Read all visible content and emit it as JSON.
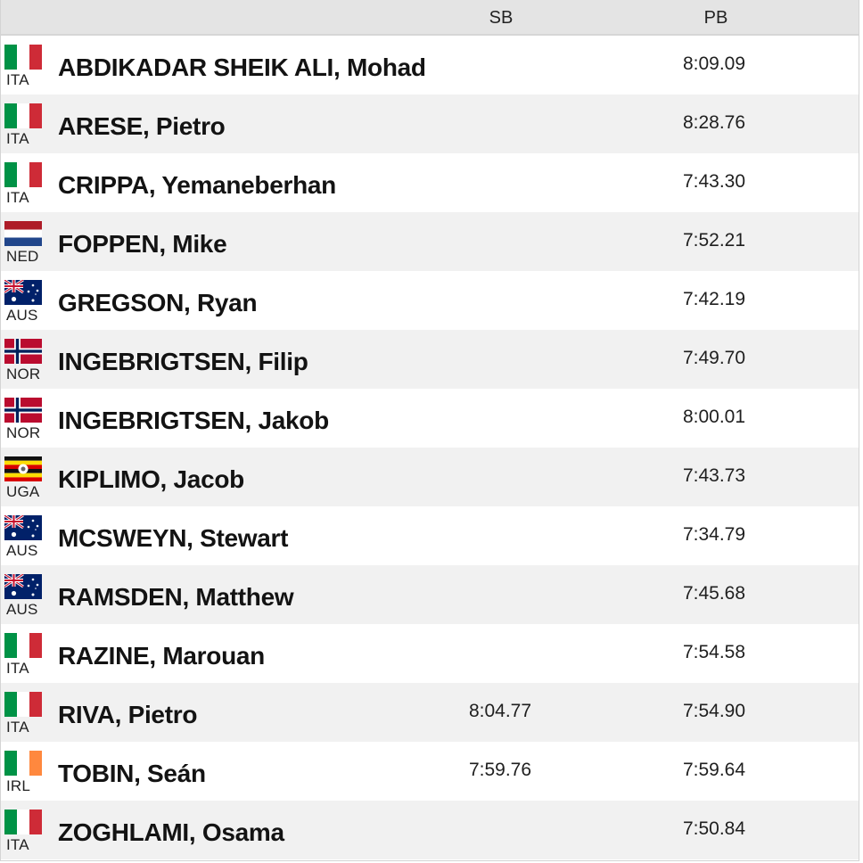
{
  "header": {
    "sb_label": "SB",
    "pb_label": "PB"
  },
  "colors": {
    "header_bg": "#e4e4e4",
    "row_alt_bg": "#f1f1f1",
    "ita_green": "#009246",
    "ita_red": "#ce2b37",
    "ned_red": "#ae1c28",
    "ned_blue": "#21468b",
    "aus_blue": "#012169",
    "nor_red": "#ba0c2f",
    "nor_blue": "#00205b",
    "irl_orange": "#ff883e",
    "uga_yellow": "#fcdc04"
  },
  "rows": [
    {
      "flag": "ita-flag-icon",
      "country": "ITA",
      "name": "ABDIKADAR SHEIK ALI, Mohad",
      "sb": "",
      "pb": "8:09.09"
    },
    {
      "flag": "ita-flag-icon",
      "country": "ITA",
      "name": "ARESE, Pietro",
      "sb": "",
      "pb": "8:28.76"
    },
    {
      "flag": "ita-flag-icon",
      "country": "ITA",
      "name": "CRIPPA, Yemaneberhan",
      "sb": "",
      "pb": "7:43.30"
    },
    {
      "flag": "ned-flag-icon",
      "country": "NED",
      "name": "FOPPEN, Mike",
      "sb": "",
      "pb": "7:52.21"
    },
    {
      "flag": "aus-flag-icon",
      "country": "AUS",
      "name": "GREGSON, Ryan",
      "sb": "",
      "pb": "7:42.19"
    },
    {
      "flag": "nor-flag-icon",
      "country": "NOR",
      "name": "INGEBRIGTSEN, Filip",
      "sb": "",
      "pb": "7:49.70"
    },
    {
      "flag": "nor-flag-icon",
      "country": "NOR",
      "name": "INGEBRIGTSEN, Jakob",
      "sb": "",
      "pb": "8:00.01"
    },
    {
      "flag": "uga-flag-icon",
      "country": "UGA",
      "name": "KIPLIMO, Jacob",
      "sb": "",
      "pb": "7:43.73"
    },
    {
      "flag": "aus-flag-icon",
      "country": "AUS",
      "name": "MCSWEYN, Stewart",
      "sb": "",
      "pb": "7:34.79"
    },
    {
      "flag": "aus-flag-icon",
      "country": "AUS",
      "name": "RAMSDEN, Matthew",
      "sb": "",
      "pb": "7:45.68"
    },
    {
      "flag": "ita-flag-icon",
      "country": "ITA",
      "name": "RAZINE, Marouan",
      "sb": "",
      "pb": "7:54.58"
    },
    {
      "flag": "ita-flag-icon",
      "country": "ITA",
      "name": "RIVA, Pietro",
      "sb": "8:04.77",
      "pb": "7:54.90"
    },
    {
      "flag": "irl-flag-icon",
      "country": "IRL",
      "name": "TOBIN, Seán",
      "sb": "7:59.76",
      "pb": "7:59.64"
    },
    {
      "flag": "ita-flag-icon",
      "country": "ITA",
      "name": "ZOGHLAMI, Osama",
      "sb": "",
      "pb": "7:50.84"
    }
  ]
}
